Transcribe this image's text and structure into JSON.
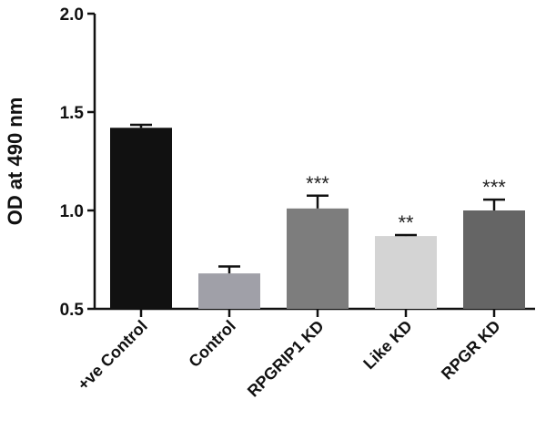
{
  "chart_data": {
    "type": "bar",
    "title": "",
    "xlabel": "",
    "ylabel": "OD at 490 nm",
    "ylim": [
      0.5,
      2.0
    ],
    "yticks": [
      0.5,
      1.0,
      1.5,
      2.0
    ],
    "ytick_labels": [
      "0.5",
      "1.0",
      "1.5",
      "2.0"
    ],
    "grid": false,
    "categories": [
      "+ve Control",
      "Control",
      "RPGRIP1 KD",
      "Like KD",
      "RPGR KD"
    ],
    "values": [
      1.42,
      0.68,
      1.01,
      0.87,
      1.0
    ],
    "errors": [
      0.015,
      0.035,
      0.065,
      0.005,
      0.055
    ],
    "significance": [
      "",
      "",
      "***",
      "**",
      "***"
    ],
    "colors": [
      "#111111",
      "#a0a0a8",
      "#7d7d7d",
      "#d4d4d4",
      "#656565"
    ]
  }
}
